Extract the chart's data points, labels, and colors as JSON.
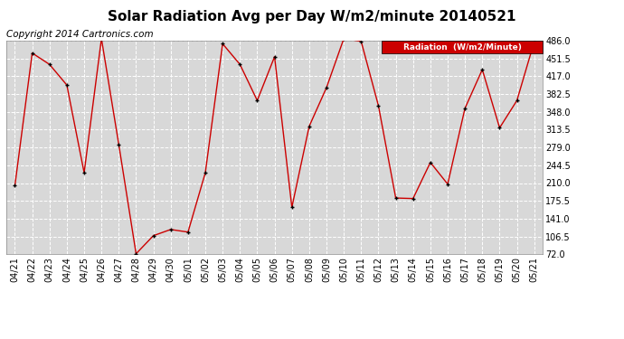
{
  "title": "Solar Radiation Avg per Day W/m2/minute 20140521",
  "copyright": "Copyright 2014 Cartronics.com",
  "legend_label": "Radiation  (W/m2/Minute)",
  "x_labels": [
    "04/21",
    "04/22",
    "04/23",
    "04/24",
    "04/25",
    "04/26",
    "04/27",
    "04/28",
    "04/29",
    "04/30",
    "05/01",
    "05/02",
    "05/03",
    "05/04",
    "05/05",
    "05/06",
    "05/07",
    "05/08",
    "05/09",
    "05/10",
    "05/11",
    "05/12",
    "05/13",
    "05/14",
    "05/15",
    "05/16",
    "05/17",
    "05/18",
    "05/19",
    "05/20",
    "05/21"
  ],
  "y_values": [
    205,
    462,
    440,
    400,
    230,
    490,
    285,
    73,
    108,
    120,
    115,
    230,
    480,
    440,
    370,
    455,
    163,
    320,
    395,
    490,
    485,
    360,
    181,
    180,
    250,
    208,
    355,
    430,
    317,
    370,
    484
  ],
  "y_ticks": [
    72.0,
    106.5,
    141.0,
    175.5,
    210.0,
    244.5,
    279.0,
    313.5,
    348.0,
    382.5,
    417.0,
    451.5,
    486.0
  ],
  "ylim": [
    72.0,
    486.0
  ],
  "line_color": "#cc0000",
  "marker_color": "#000000",
  "bg_color": "#ffffff",
  "plot_bg_color": "#d8d8d8",
  "grid_color": "#ffffff",
  "title_fontsize": 11,
  "copyright_fontsize": 7.5,
  "tick_fontsize": 7,
  "legend_bg": "#cc0000",
  "legend_text_color": "#ffffff"
}
